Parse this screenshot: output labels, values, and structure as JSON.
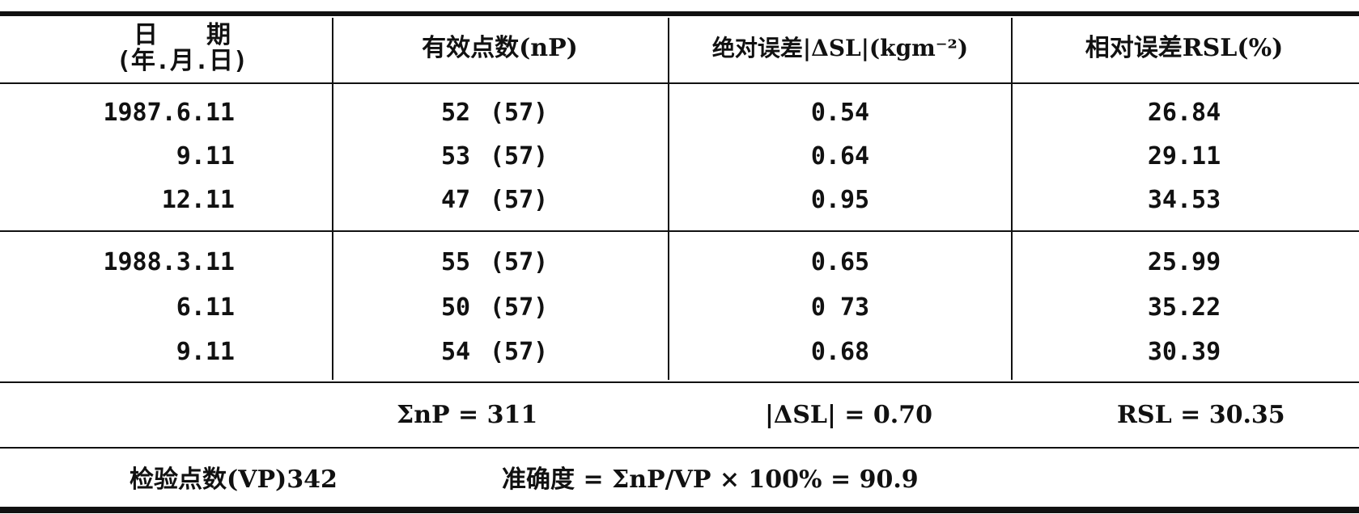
{
  "header": {
    "date_line1": "日　　期",
    "date_line2": "(年.月.日)",
    "np": "有效点数(nP)",
    "abs_err": "绝对误差|ΔSL|(kgm⁻²)",
    "rel_err": "相对误差RSL(%)"
  },
  "rows": [
    {
      "date": "1987.6.11",
      "np": "52",
      "total": "(57)",
      "abs": "0.54",
      "rel": "26.84"
    },
    {
      "date": "9.11",
      "np": "53",
      "total": "(57)",
      "abs": "0.64",
      "rel": "29.11"
    },
    {
      "date": "12.11",
      "np": "47",
      "total": "(57)",
      "abs": "0.95",
      "rel": "34.53"
    },
    {
      "date": "1988.3.11",
      "np": "55",
      "total": "(57)",
      "abs": "0.65",
      "rel": "25.99"
    },
    {
      "date": "6.11",
      "np": "50",
      "total": "(57)",
      "abs": "0 73",
      "rel": "35.22"
    },
    {
      "date": "9.11",
      "np": "54",
      "total": "(57)",
      "abs": "0.68",
      "rel": "30.39"
    }
  ],
  "summary": {
    "sum_np": "ΣnP = 311",
    "mean_abs": "|ΔSL| = 0.70",
    "mean_rel": "RSL = 30.35"
  },
  "footer": {
    "vp": "检验点数(VP)342",
    "accuracy": "准确度 = ΣnP/VP × 100% = 90.9"
  }
}
